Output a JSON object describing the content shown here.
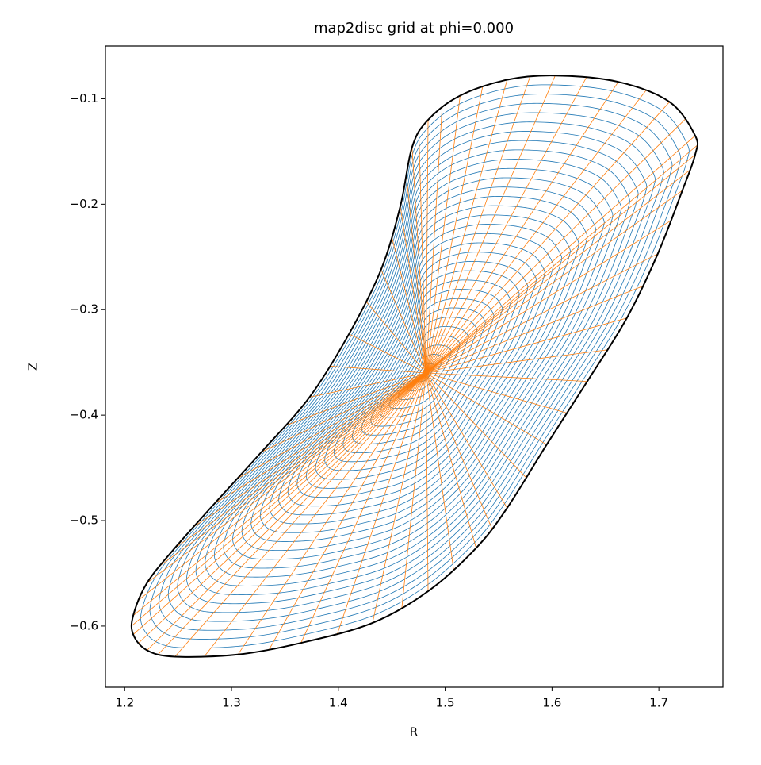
{
  "chart_data": {
    "type": "line",
    "title": "map2disc grid at phi=0.000",
    "xlabel": "R",
    "ylabel": "Z",
    "xlim": [
      1.182,
      1.76
    ],
    "ylim": [
      -0.658,
      -0.05
    ],
    "xticks": [
      1.2,
      1.3,
      1.4,
      1.5,
      1.6,
      1.7
    ],
    "yticks": [
      {
        "value": -0.1,
        "label": "−0.1"
      },
      {
        "value": -0.2,
        "label": "−0.2"
      },
      {
        "value": -0.3,
        "label": "−0.3"
      },
      {
        "value": -0.4,
        "label": "−0.4"
      },
      {
        "value": -0.5,
        "label": "−0.5"
      },
      {
        "value": -0.6,
        "label": "−0.6"
      }
    ],
    "surface_color": "#1f77b4",
    "ray_color": "#ff7f0e",
    "series": [
      {
        "color": "#000000",
        "x": [
          1.603,
          1.662,
          1.71,
          1.734,
          1.734,
          1.722,
          1.699,
          1.67,
          1.633,
          1.595,
          1.558,
          1.529,
          1.484,
          1.432,
          1.365,
          1.306,
          1.247,
          1.221,
          1.208,
          1.208,
          1.221,
          1.247,
          1.284,
          1.328,
          1.373,
          1.41,
          1.44,
          1.458,
          1.469,
          1.484,
          1.514,
          1.558
        ],
        "values": [
          -0.078,
          -0.084,
          -0.103,
          -0.135,
          -0.153,
          -0.187,
          -0.247,
          -0.308,
          -0.368,
          -0.428,
          -0.488,
          -0.526,
          -0.567,
          -0.597,
          -0.616,
          -0.627,
          -0.629,
          -0.623,
          -0.608,
          -0.59,
          -0.559,
          -0.526,
          -0.484,
          -0.435,
          -0.383,
          -0.323,
          -0.262,
          -0.202,
          -0.146,
          -0.12,
          -0.097,
          -0.082
        ]
      },
      {
        "color": "#ff7f0e",
        "x": [
          1.482
        ],
        "values": [
          -0.36
        ]
      }
    ]
  }
}
